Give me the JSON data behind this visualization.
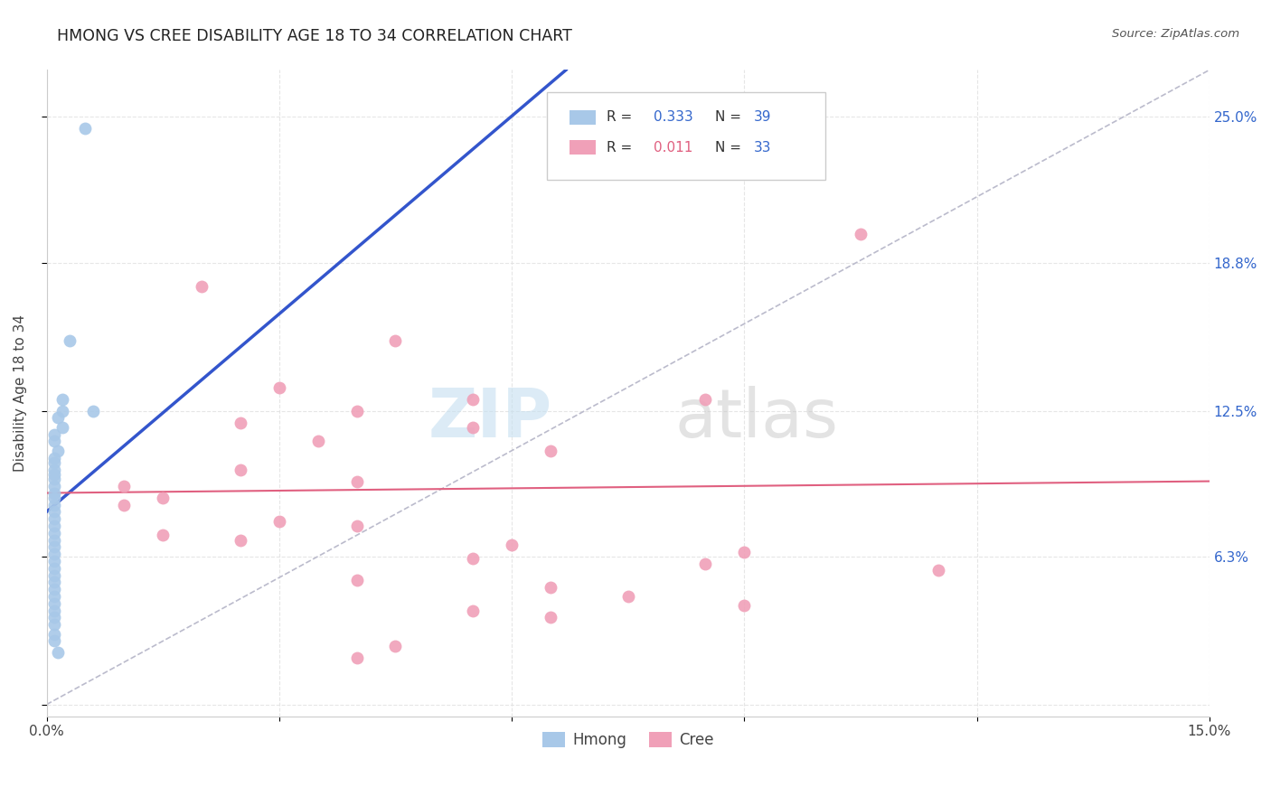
{
  "title": "HMONG VS CREE DISABILITY AGE 18 TO 34 CORRELATION CHART",
  "source": "Source: ZipAtlas.com",
  "ylabel": "Disability Age 18 to 34",
  "xlim": [
    0.0,
    0.15
  ],
  "ylim": [
    -0.005,
    0.27
  ],
  "xtick_positions": [
    0.0,
    0.03,
    0.06,
    0.09,
    0.12,
    0.15
  ],
  "xticklabels": [
    "0.0%",
    "",
    "",
    "",
    "",
    "15.0%"
  ],
  "ytick_positions": [
    0.0,
    0.063,
    0.125,
    0.188,
    0.25
  ],
  "yticklabels": [
    "",
    "6.3%",
    "12.5%",
    "18.8%",
    "25.0%"
  ],
  "background_color": "#ffffff",
  "grid_color": "#e0e0e0",
  "watermark_zip": "ZIP",
  "watermark_atlas": "atlas",
  "hmong_color": "#a8c8e8",
  "cree_color": "#f0a0b8",
  "hmong_R": 0.333,
  "hmong_N": 39,
  "cree_R": 0.011,
  "cree_N": 33,
  "hmong_line_color": "#3355cc",
  "cree_line_color": "#e06080",
  "diag_color": "#bbbbcc",
  "hmong_points": [
    [
      0.005,
      0.245
    ],
    [
      0.003,
      0.155
    ],
    [
      0.002,
      0.13
    ],
    [
      0.002,
      0.125
    ],
    [
      0.0015,
      0.122
    ],
    [
      0.002,
      0.118
    ],
    [
      0.001,
      0.115
    ],
    [
      0.001,
      0.112
    ],
    [
      0.0015,
      0.108
    ],
    [
      0.001,
      0.105
    ],
    [
      0.001,
      0.103
    ],
    [
      0.001,
      0.1
    ],
    [
      0.001,
      0.098
    ],
    [
      0.001,
      0.096
    ],
    [
      0.001,
      0.093
    ],
    [
      0.001,
      0.09
    ],
    [
      0.001,
      0.088
    ],
    [
      0.001,
      0.085
    ],
    [
      0.001,
      0.082
    ],
    [
      0.001,
      0.079
    ],
    [
      0.001,
      0.076
    ],
    [
      0.001,
      0.073
    ],
    [
      0.001,
      0.07
    ],
    [
      0.001,
      0.067
    ],
    [
      0.001,
      0.064
    ],
    [
      0.001,
      0.061
    ],
    [
      0.001,
      0.058
    ],
    [
      0.001,
      0.055
    ],
    [
      0.001,
      0.052
    ],
    [
      0.001,
      0.049
    ],
    [
      0.001,
      0.046
    ],
    [
      0.001,
      0.043
    ],
    [
      0.001,
      0.04
    ],
    [
      0.001,
      0.037
    ],
    [
      0.001,
      0.034
    ],
    [
      0.001,
      0.03
    ],
    [
      0.001,
      0.027
    ],
    [
      0.0015,
      0.022
    ],
    [
      0.006,
      0.125
    ]
  ],
  "cree_points": [
    [
      0.105,
      0.2
    ],
    [
      0.02,
      0.178
    ],
    [
      0.045,
      0.155
    ],
    [
      0.03,
      0.135
    ],
    [
      0.055,
      0.13
    ],
    [
      0.085,
      0.13
    ],
    [
      0.04,
      0.125
    ],
    [
      0.025,
      0.12
    ],
    [
      0.055,
      0.118
    ],
    [
      0.035,
      0.112
    ],
    [
      0.065,
      0.108
    ],
    [
      0.025,
      0.1
    ],
    [
      0.01,
      0.093
    ],
    [
      0.015,
      0.088
    ],
    [
      0.01,
      0.085
    ],
    [
      0.03,
      0.078
    ],
    [
      0.04,
      0.076
    ],
    [
      0.015,
      0.072
    ],
    [
      0.025,
      0.07
    ],
    [
      0.04,
      0.095
    ],
    [
      0.06,
      0.068
    ],
    [
      0.09,
      0.065
    ],
    [
      0.055,
      0.062
    ],
    [
      0.085,
      0.06
    ],
    [
      0.115,
      0.057
    ],
    [
      0.04,
      0.053
    ],
    [
      0.065,
      0.05
    ],
    [
      0.075,
      0.046
    ],
    [
      0.09,
      0.042
    ],
    [
      0.055,
      0.04
    ],
    [
      0.065,
      0.037
    ],
    [
      0.045,
      0.025
    ],
    [
      0.04,
      0.02
    ]
  ]
}
